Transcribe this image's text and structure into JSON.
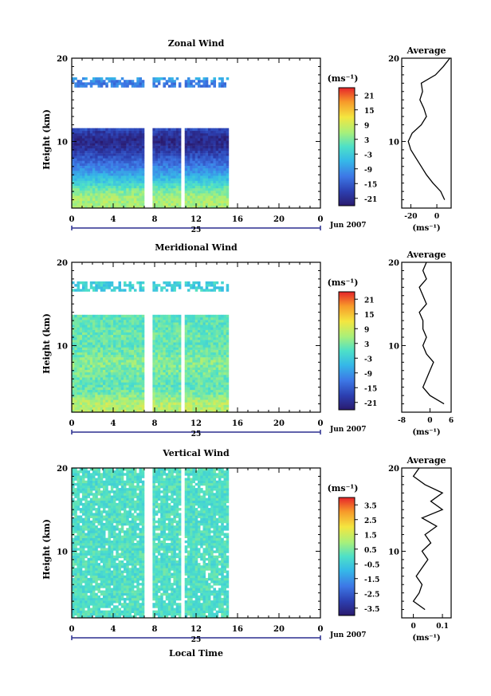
{
  "figure": {
    "date_label": "Jun 2007",
    "day_label": "25",
    "time_ticks": [
      "0",
      "4",
      "8",
      "12",
      "16",
      "20",
      "0"
    ],
    "xlabel": "Local Time",
    "unit_label": "(ms⁻¹)"
  },
  "chart_data": [
    {
      "type": "heatmap",
      "title": "Zonal Wind",
      "ylabel": "Height (km)",
      "yticks": [
        "20",
        "10"
      ],
      "ylim": [
        2,
        20
      ],
      "xlim": [
        0,
        24
      ],
      "x_unit": "local time (h)",
      "data_coverage_hours": [
        [
          0,
          7.0
        ],
        [
          7.8,
          10.5
        ],
        [
          10.9,
          15.0
        ]
      ],
      "colorbar_ticks": [
        "21",
        "15",
        "9",
        "3",
        "-3",
        "-9",
        "-15",
        "-21"
      ],
      "colorbar_range": [
        -24,
        24
      ],
      "profile": {
        "title": "Average",
        "xticks": [
          "-20",
          "0"
        ],
        "xlim": [
          -27,
          11
        ],
        "xlabel": "(ms⁻¹)",
        "height_km": [
          3,
          4,
          5,
          6,
          7,
          8,
          9,
          10,
          11,
          12,
          13,
          14,
          15,
          16,
          17,
          18,
          19,
          20
        ],
        "value": [
          6,
          3,
          -3,
          -8,
          -12,
          -16,
          -20,
          -22,
          -19,
          -12,
          -8,
          -10,
          -13,
          -11,
          -12,
          -1,
          5,
          10
        ]
      }
    },
    {
      "type": "heatmap",
      "title": "Meridional Wind",
      "ylabel": "Height (km)",
      "yticks": [
        "20",
        "10"
      ],
      "ylim": [
        2,
        20
      ],
      "xlim": [
        0,
        24
      ],
      "x_unit": "local time (h)",
      "data_coverage_hours": [
        [
          0,
          7.0
        ],
        [
          7.8,
          10.5
        ],
        [
          10.9,
          15.0
        ]
      ],
      "colorbar_ticks": [
        "21",
        "15",
        "9",
        "3",
        "-3",
        "-9",
        "-15",
        "-21"
      ],
      "colorbar_range": [
        -24,
        24
      ],
      "profile": {
        "title": "Average",
        "xticks": [
          "-8",
          "0",
          "6"
        ],
        "xlim": [
          -8,
          6
        ],
        "xlabel": "(ms⁻¹)",
        "height_km": [
          3,
          4,
          5,
          6,
          7,
          8,
          9,
          10,
          11,
          12,
          13,
          14,
          15,
          16,
          17,
          18,
          19,
          20
        ],
        "value": [
          4,
          0,
          -2,
          -1,
          0,
          1,
          -1,
          -2,
          -1,
          -2,
          -2,
          -3,
          -1,
          -2,
          -3,
          -1,
          -2,
          -1
        ]
      }
    },
    {
      "type": "heatmap",
      "title": "Vertical Wind",
      "ylabel": "Height (km)",
      "yticks": [
        "20",
        "10"
      ],
      "ylim": [
        2,
        20
      ],
      "xlim": [
        0,
        24
      ],
      "x_unit": "local time (h)",
      "data_coverage_hours": [
        [
          0,
          7.0
        ],
        [
          7.8,
          10.5
        ],
        [
          10.9,
          15.0
        ]
      ],
      "colorbar_ticks": [
        "3.5",
        "2.5",
        "1.5",
        "0.5",
        "-0.5",
        "-1.5",
        "-2.5",
        "-3.5"
      ],
      "colorbar_range": [
        -4,
        4
      ],
      "profile": {
        "title": "Average",
        "xticks": [
          "0",
          "0.1"
        ],
        "xlim": [
          -0.04,
          0.13
        ],
        "xlabel": "(ms⁻¹)",
        "height_km": [
          3,
          4,
          5,
          6,
          7,
          8,
          9,
          10,
          11,
          12,
          13,
          14,
          15,
          16,
          17,
          18,
          19,
          20
        ],
        "value": [
          0.04,
          0.0,
          0.02,
          0.03,
          0.01,
          0.03,
          0.05,
          0.03,
          0.06,
          0.04,
          0.08,
          0.03,
          0.1,
          0.06,
          0.1,
          0.04,
          0.0,
          0.02
        ]
      }
    }
  ]
}
